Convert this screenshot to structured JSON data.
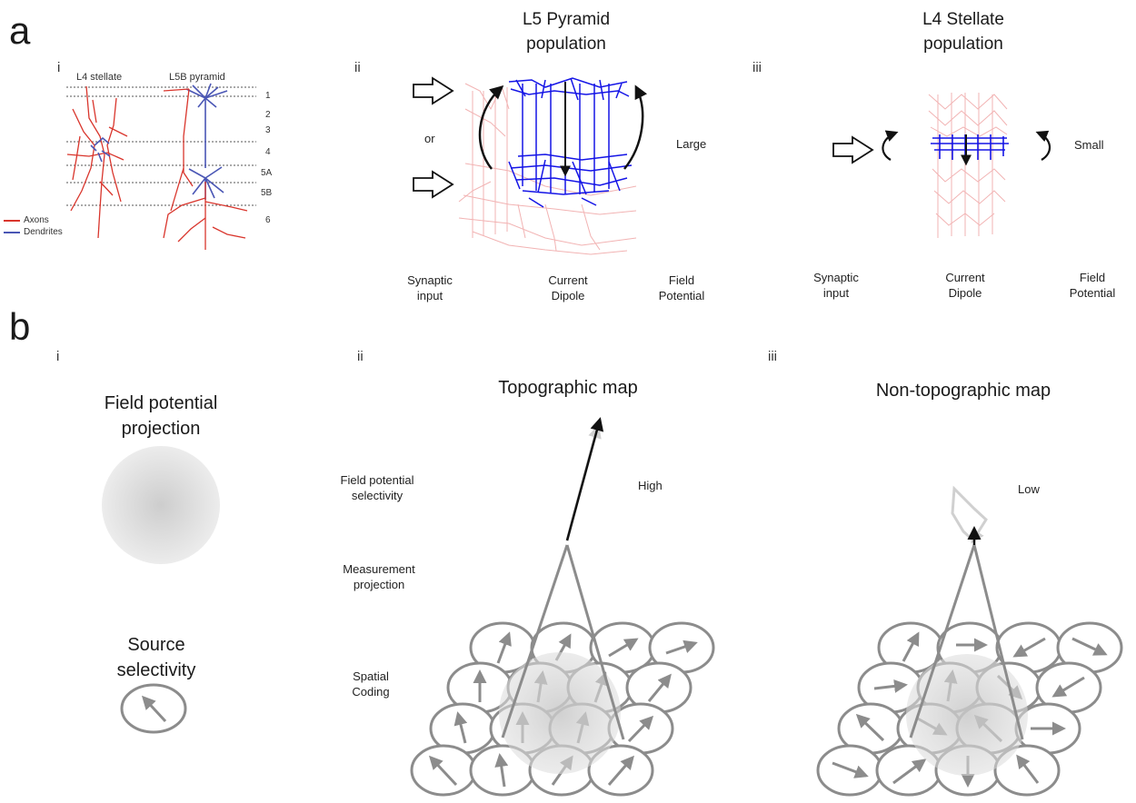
{
  "panel_a": {
    "letter": "a",
    "sub_i": "i",
    "sub_ii": "ii",
    "sub_iii": "iii",
    "i": {
      "col_l4": "L4 stellate",
      "col_l5": "L5B pyramid",
      "layers": [
        "1",
        "2",
        "3",
        "4",
        "5A",
        "5B",
        "6"
      ],
      "legend_axons": "Axons",
      "legend_dendrites": "Dendrites",
      "axon_color": "#d9352c",
      "dendrite_color": "#4a56b5"
    },
    "ii": {
      "title_line1": "L5 Pyramid",
      "title_line2": "population",
      "or_label": "or",
      "magnitude": "Large",
      "caption_synaptic_1": "Synaptic",
      "caption_synaptic_2": "input",
      "caption_dipole_1": "Current",
      "caption_dipole_2": "Dipole",
      "caption_field_1": "Field",
      "caption_field_2": "Potential"
    },
    "iii": {
      "title_line1": "L4 Stellate",
      "title_line2": "population",
      "magnitude": "Small",
      "caption_synaptic_1": "Synaptic",
      "caption_synaptic_2": "input",
      "caption_dipole_1": "Current",
      "caption_dipole_2": "Dipole",
      "caption_field_1": "Field",
      "caption_field_2": "Potential"
    },
    "dendrite_blue": "#1414e6",
    "axon_pink": "#f2b3b3"
  },
  "panel_b": {
    "letter": "b",
    "sub_i": "i",
    "sub_ii": "ii",
    "sub_iii": "iii",
    "i": {
      "projection_line1": "Field potential",
      "projection_line2": "projection",
      "source_line1": "Source",
      "source_line2": "selectivity"
    },
    "ii": {
      "title": "Topographic map",
      "row_fp_1": "Field potential",
      "row_fp_2": "selectivity",
      "row_mp_1": "Measurement",
      "row_mp_2": "projection",
      "row_sc_1": "Spatial",
      "row_sc_2": "Coding",
      "selectivity": "High"
    },
    "iii": {
      "title": "Non-topographic map",
      "selectivity": "Low"
    },
    "cell_stroke": "#8c8c8c",
    "arrow_gray": "#8c8c8c",
    "faded_arrow": "#d0d0d0"
  }
}
